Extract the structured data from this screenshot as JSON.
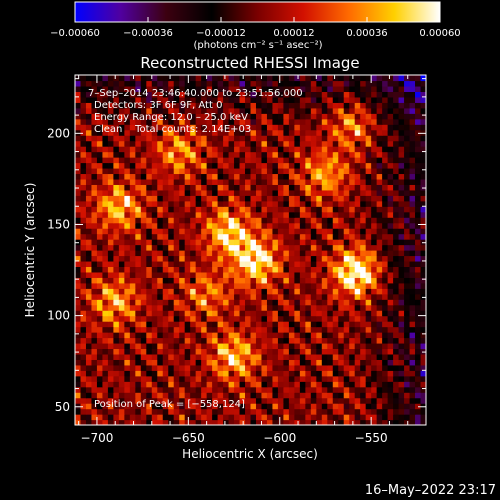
{
  "chart_data": {
    "type": "heatmap",
    "title": "Reconstructed RHESSI Image",
    "xlabel": "Heliocentric X (arcsec)",
    "ylabel": "Heliocentric Y (arcsec)",
    "xlim": [
      -712,
      -520
    ],
    "ylim": [
      40,
      232
    ],
    "xticks": [
      -700,
      -650,
      -600,
      -550
    ],
    "xtick_labels": [
      "−700",
      "−650",
      "−600",
      "−550"
    ],
    "yticks": [
      50,
      100,
      150,
      200
    ],
    "ytick_labels": [
      "50",
      "100",
      "150",
      "200"
    ],
    "colorbar": {
      "range": [
        -0.0006,
        0.0006
      ],
      "ticks": [
        -0.0006,
        -0.00036,
        -0.00012,
        0.00012,
        0.00036,
        0.0006
      ],
      "tick_labels": [
        "−0.00060",
        "−0.00036",
        "−0.00012",
        "0.00012",
        "0.00036",
        "0.00060"
      ],
      "unit_label": "(photons cm⁻² s⁻¹ asec⁻²)",
      "colormap": [
        "#0000ff",
        "#5000a0",
        "#3c0010",
        "#000000",
        "#7a0000",
        "#d21000",
        "#ff6a00",
        "#ffd000",
        "#ffffff"
      ]
    },
    "annotations": [
      "7–Sep–2014 23:46:40.000 to 23:51:56.000",
      "Detectors: 3F 6F 9F, Att 0",
      "Energy Range: 12.0 – 25.0 keV",
      "Clean    Total counts: 2.14E+03",
      "Position of Peak = [−558,124]"
    ],
    "peak": {
      "x": -558,
      "y": 124,
      "value": 0.0006
    },
    "sources": [
      {
        "x": -558,
        "y": 124,
        "value": 0.0006
      },
      {
        "x": -613,
        "y": 130,
        "value": 0.00052
      },
      {
        "x": -628,
        "y": 146,
        "value": 0.00046
      },
      {
        "x": -625,
        "y": 78,
        "value": 0.00042
      },
      {
        "x": -688,
        "y": 160,
        "value": 0.0004
      },
      {
        "x": -575,
        "y": 178,
        "value": 0.00034
      },
      {
        "x": -655,
        "y": 190,
        "value": 0.00032
      },
      {
        "x": -690,
        "y": 108,
        "value": 0.00036
      },
      {
        "x": -560,
        "y": 205,
        "value": 0.0003
      },
      {
        "x": -640,
        "y": 112,
        "value": 0.00028
      }
    ]
  },
  "footer": {
    "date_stamp": "16–May–2022 23:17"
  }
}
